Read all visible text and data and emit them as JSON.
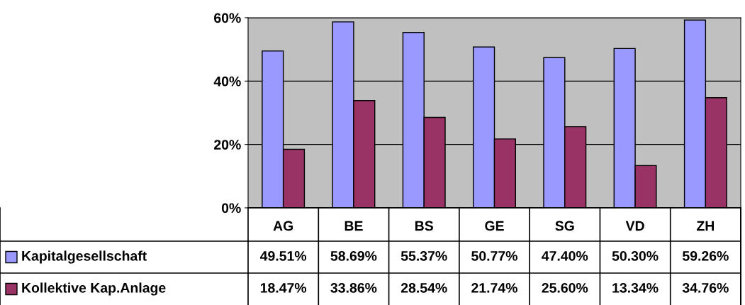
{
  "chart_data": {
    "type": "bar",
    "categories": [
      "AG",
      "BE",
      "BS",
      "GE",
      "SG",
      "VD",
      "ZH"
    ],
    "series": [
      {
        "name": "Kapitalgesellschaft",
        "color": "#9999ff",
        "values": [
          49.51,
          58.69,
          55.37,
          50.77,
          47.4,
          50.3,
          59.26
        ],
        "value_labels": [
          "49.51%",
          "58.69%",
          "55.37%",
          "50.77%",
          "47.40%",
          "50.30%",
          "59.26%"
        ]
      },
      {
        "name": "Kollektive Kap.Anlage",
        "color": "#993366",
        "values": [
          18.47,
          33.86,
          28.54,
          21.74,
          25.6,
          13.34,
          34.76
        ],
        "value_labels": [
          "18.47%",
          "33.86%",
          "28.54%",
          "21.74%",
          "25.60%",
          "13.34%",
          "34.76%"
        ]
      }
    ],
    "ylim": [
      0,
      60
    ],
    "yticks": [
      {
        "value": 0,
        "label": "0%"
      },
      {
        "value": 20,
        "label": "20%"
      },
      {
        "value": 40,
        "label": "40%"
      },
      {
        "value": 60,
        "label": "60%"
      }
    ],
    "grid": "y",
    "legend": "bottom left"
  }
}
